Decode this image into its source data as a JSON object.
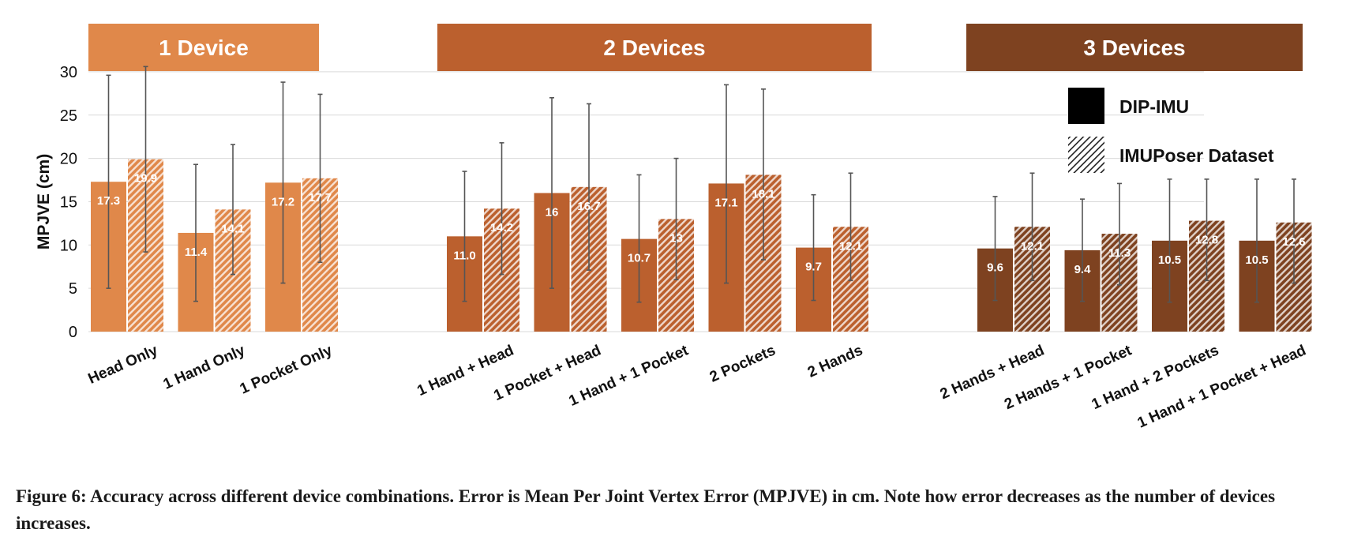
{
  "chart_data": {
    "type": "bar",
    "ylabel": "MPJVE (cm)",
    "ylim": [
      0,
      30
    ],
    "yticks": [
      0,
      5,
      10,
      15,
      20,
      25,
      30
    ],
    "grid": true,
    "legend_position": "top-right",
    "legend": [
      {
        "name": "DIP-IMU",
        "style": "solid"
      },
      {
        "name": "IMUPoser Dataset",
        "style": "hatched"
      }
    ],
    "groups": [
      {
        "label": "1 Device",
        "color": "#E0884A",
        "categories": [
          {
            "label": "Head Only",
            "dip": 17.3,
            "dip_label": "17.3",
            "dip_err": [
              5.0,
              29.6
            ],
            "imu": 19.9,
            "imu_label": "19.9",
            "imu_err": [
              9.2,
              30.6
            ]
          },
          {
            "label": "1 Hand Only",
            "dip": 11.4,
            "dip_label": "11.4",
            "dip_err": [
              3.5,
              19.3
            ],
            "imu": 14.1,
            "imu_label": "14.1",
            "imu_err": [
              6.6,
              21.6
            ]
          },
          {
            "label": "1 Pocket Only",
            "dip": 17.2,
            "dip_label": "17.2",
            "dip_err": [
              5.6,
              28.8
            ],
            "imu": 17.7,
            "imu_label": "17.7",
            "imu_err": [
              8.0,
              27.4
            ]
          }
        ]
      },
      {
        "label": "2 Devices",
        "color": "#BB602E",
        "categories": [
          {
            "label": "1 Hand + Head",
            "dip": 11.0,
            "dip_label": "11.0",
            "dip_err": [
              3.5,
              18.5
            ],
            "imu": 14.2,
            "imu_label": "14.2",
            "imu_err": [
              6.6,
              21.8
            ]
          },
          {
            "label": "1 Pocket + Head",
            "dip": 16.0,
            "dip_label": "16",
            "dip_err": [
              5.0,
              27.0
            ],
            "imu": 16.7,
            "imu_label": "16.7",
            "imu_err": [
              7.1,
              26.3
            ]
          },
          {
            "label": "1 Hand + 1 Pocket",
            "dip": 10.7,
            "dip_label": "10.7",
            "dip_err": [
              3.4,
              18.1
            ],
            "imu": 13.0,
            "imu_label": "13",
            "imu_err": [
              6.0,
              20.0
            ]
          },
          {
            "label": "2 Pockets",
            "dip": 17.1,
            "dip_label": "17.1",
            "dip_err": [
              5.6,
              28.5
            ],
            "imu": 18.1,
            "imu_label": "18.1",
            "imu_err": [
              8.3,
              28.0
            ]
          },
          {
            "label": "2 Hands",
            "dip": 9.7,
            "dip_label": "9.7",
            "dip_err": [
              3.6,
              15.8
            ],
            "imu": 12.1,
            "imu_label": "12.1",
            "imu_err": [
              5.9,
              18.3
            ]
          }
        ]
      },
      {
        "label": "3 Devices",
        "color": "#7E4220",
        "categories": [
          {
            "label": "2 Hands + Head",
            "dip": 9.6,
            "dip_label": "9.6",
            "dip_err": [
              3.6,
              15.6
            ],
            "imu": 12.1,
            "imu_label": "12.1",
            "imu_err": [
              5.9,
              18.3
            ]
          },
          {
            "label": "2 Hands + 1 Pocket",
            "dip": 9.4,
            "dip_label": "9.4",
            "dip_err": [
              3.5,
              15.3
            ],
            "imu": 11.3,
            "imu_label": "11.3",
            "imu_err": [
              5.4,
              17.1
            ]
          },
          {
            "label": "1 Hand + 2 Pockets",
            "dip": 10.5,
            "dip_label": "10.5",
            "dip_err": [
              3.4,
              17.6
            ],
            "imu": 12.8,
            "imu_label": "12.8",
            "imu_err": [
              5.9,
              17.6
            ]
          },
          {
            "label": "1 Hand + 1 Pocket + Head",
            "dip": 10.5,
            "dip_label": "10.5",
            "dip_err": [
              3.4,
              17.6
            ],
            "imu": 12.6,
            "imu_label": "12.6",
            "imu_err": [
              5.6,
              17.6
            ]
          }
        ]
      }
    ]
  },
  "caption": "Figure 6: Accuracy across different device combinations. Error is Mean Per Joint Vertex Error (MPJVE) in cm. Note how error decreases as the number of devices increases."
}
